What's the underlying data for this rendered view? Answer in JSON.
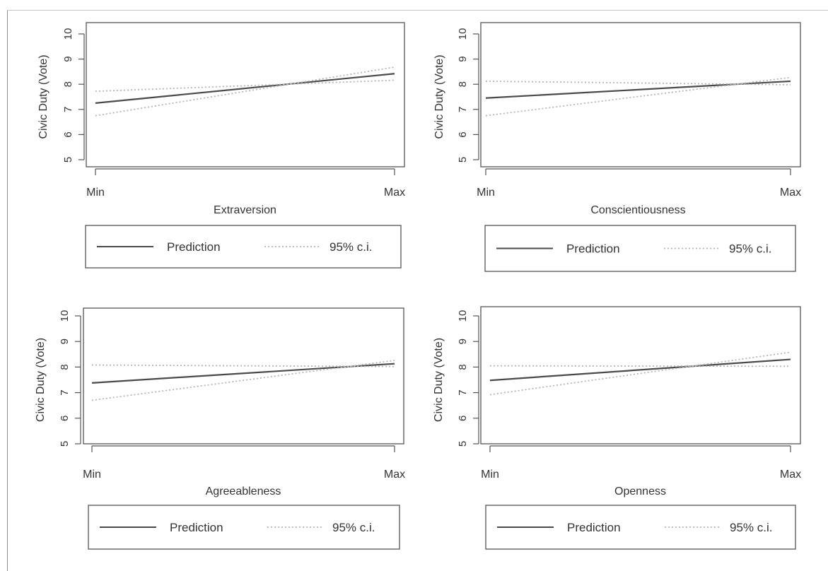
{
  "colors": {
    "axis": "#555555",
    "prediction": "#4a4a4a",
    "ci": "#b5b5b5",
    "text": "#333333"
  },
  "legend": {
    "prediction_label": "Prediction",
    "ci_label": "95% c.i."
  },
  "chart_data": [
    {
      "type": "line",
      "xlabel": "Extraversion",
      "ylabel": "Civic Duty (Vote)",
      "x_ticks": [
        "Min",
        "Max"
      ],
      "y_ticks": [
        5,
        6,
        7,
        8,
        9,
        10
      ],
      "ylim": [
        5,
        10
      ],
      "legend_position": "below",
      "series": [
        {
          "name": "Prediction",
          "style": "solid",
          "x": [
            "Min",
            "Max"
          ],
          "values": [
            7.25,
            8.42
          ]
        },
        {
          "name": "95% c.i.",
          "style": "dotted",
          "x": [
            "Min",
            "Max"
          ],
          "values": [
            6.75,
            8.68
          ]
        },
        {
          "name": "95% c.i.",
          "style": "dotted",
          "x": [
            "Min",
            "Max"
          ],
          "values": [
            7.72,
            8.16
          ]
        }
      ]
    },
    {
      "type": "line",
      "xlabel": "Conscientiousness",
      "ylabel": "Civic Duty (Vote)",
      "x_ticks": [
        "Min",
        "Max"
      ],
      "y_ticks": [
        5,
        6,
        7,
        8,
        9,
        10
      ],
      "ylim": [
        5,
        10
      ],
      "legend_position": "below",
      "series": [
        {
          "name": "Prediction",
          "style": "solid",
          "x": [
            "Min",
            "Max"
          ],
          "values": [
            7.45,
            8.12
          ]
        },
        {
          "name": "95% c.i.",
          "style": "dotted",
          "x": [
            "Min",
            "Max"
          ],
          "values": [
            6.75,
            8.27
          ]
        },
        {
          "name": "95% c.i.",
          "style": "dotted",
          "x": [
            "Min",
            "Max"
          ],
          "values": [
            8.12,
            7.98
          ]
        }
      ]
    },
    {
      "type": "line",
      "xlabel": "Agreeableness",
      "ylabel": "Civic Duty (Vote)",
      "x_ticks": [
        "Min",
        "Max"
      ],
      "y_ticks": [
        5,
        6,
        7,
        8,
        9,
        10
      ],
      "ylim": [
        5,
        10
      ],
      "legend_position": "below",
      "series": [
        {
          "name": "Prediction",
          "style": "solid",
          "x": [
            "Min",
            "Max"
          ],
          "values": [
            7.38,
            8.13
          ]
        },
        {
          "name": "95% c.i.",
          "style": "dotted",
          "x": [
            "Min",
            "Max"
          ],
          "values": [
            6.7,
            8.26
          ]
        },
        {
          "name": "95% c.i.",
          "style": "dotted",
          "x": [
            "Min",
            "Max"
          ],
          "values": [
            8.08,
            8.02
          ]
        }
      ]
    },
    {
      "type": "line",
      "xlabel": "Openness",
      "ylabel": "Civic Duty (Vote)",
      "x_ticks": [
        "Min",
        "Max"
      ],
      "y_ticks": [
        5,
        6,
        7,
        8,
        9,
        10
      ],
      "ylim": [
        5,
        10
      ],
      "legend_position": "below",
      "series": [
        {
          "name": "Prediction",
          "style": "solid",
          "x": [
            "Min",
            "Max"
          ],
          "values": [
            7.48,
            8.3
          ]
        },
        {
          "name": "95% c.i.",
          "style": "dotted",
          "x": [
            "Min",
            "Max"
          ],
          "values": [
            6.92,
            8.58
          ]
        },
        {
          "name": "95% c.i.",
          "style": "dotted",
          "x": [
            "Min",
            "Max"
          ],
          "values": [
            8.05,
            8.03
          ]
        }
      ]
    }
  ]
}
